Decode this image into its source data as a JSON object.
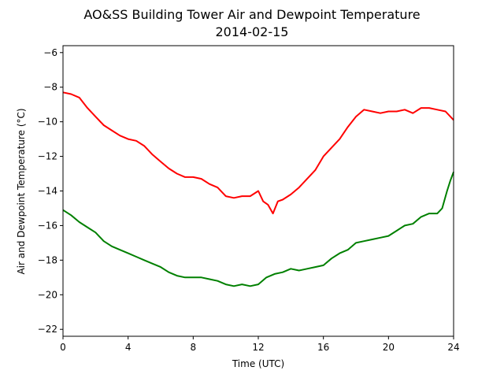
{
  "chart_data": {
    "type": "line",
    "title": "AO&SS Building Tower Air and Dewpoint Temperature",
    "subtitle": "2014-02-15",
    "xlabel": "Time (UTC)",
    "ylabel": "Air and Dewpoint Temperature (°C)",
    "xlim": [
      0,
      24
    ],
    "ylim": [
      -22.4,
      -5.6
    ],
    "xticks": [
      0,
      4,
      8,
      12,
      16,
      20,
      24
    ],
    "xtick_labels": [
      "0",
      "4",
      "8",
      "12",
      "16",
      "20",
      "24"
    ],
    "yticks": [
      -6,
      -8,
      -10,
      -12,
      -14,
      -16,
      -18,
      -20,
      -22
    ],
    "ytick_labels": [
      "−6",
      "−8",
      "−10",
      "−12",
      "−14",
      "−16",
      "−18",
      "−20",
      "−22"
    ],
    "grid": false,
    "legend": "none",
    "series": [
      {
        "color": "#ff0000",
        "x": [
          0,
          0.5,
          1,
          1.5,
          2,
          2.5,
          3,
          3.5,
          4,
          4.5,
          5,
          5.5,
          6,
          6.5,
          7,
          7.5,
          8,
          8.5,
          9,
          9.5,
          10,
          10.5,
          11,
          11.5,
          12,
          12.3,
          12.6,
          12.9,
          13.2,
          13.5,
          14,
          14.5,
          15,
          15.5,
          16,
          16.5,
          17,
          17.5,
          18,
          18.5,
          19,
          19.5,
          20,
          20.5,
          21,
          21.5,
          22,
          22.5,
          23,
          23.5,
          24
        ],
        "y": [
          -8.3,
          -8.4,
          -8.6,
          -9.2,
          -9.7,
          -10.2,
          -10.5,
          -10.8,
          -11.0,
          -11.1,
          -11.4,
          -11.9,
          -12.3,
          -12.7,
          -13.0,
          -13.2,
          -13.2,
          -13.3,
          -13.6,
          -13.8,
          -14.3,
          -14.4,
          -14.3,
          -14.3,
          -14.0,
          -14.6,
          -14.8,
          -15.3,
          -14.6,
          -14.5,
          -14.2,
          -13.8,
          -13.3,
          -12.8,
          -12.0,
          -11.5,
          -11.0,
          -10.3,
          -9.7,
          -9.3,
          -9.4,
          -9.5,
          -9.4,
          -9.4,
          -9.3,
          -9.5,
          -9.2,
          -9.2,
          -9.3,
          -9.4,
          -9.9
        ]
      },
      {
        "color": "#008000",
        "x": [
          0,
          0.5,
          1,
          1.5,
          2,
          2.5,
          3,
          3.5,
          4,
          4.5,
          5,
          5.5,
          6,
          6.5,
          7,
          7.5,
          8,
          8.5,
          9,
          9.5,
          10,
          10.5,
          11,
          11.5,
          12,
          12.5,
          13,
          13.5,
          14,
          14.5,
          15,
          15.5,
          16,
          16.5,
          17,
          17.5,
          18,
          18.5,
          19,
          19.5,
          20,
          20.5,
          21,
          21.5,
          22,
          22.5,
          23,
          23.3,
          23.6,
          23.8,
          24
        ],
        "y": [
          -15.1,
          -15.4,
          -15.8,
          -16.1,
          -16.4,
          -16.9,
          -17.2,
          -17.4,
          -17.6,
          -17.8,
          -18.0,
          -18.2,
          -18.4,
          -18.7,
          -18.9,
          -19.0,
          -19.0,
          -19.0,
          -19.1,
          -19.2,
          -19.4,
          -19.5,
          -19.4,
          -19.5,
          -19.4,
          -19.0,
          -18.8,
          -18.7,
          -18.5,
          -18.6,
          -18.5,
          -18.4,
          -18.3,
          -17.9,
          -17.6,
          -17.4,
          -17.0,
          -16.9,
          -16.8,
          -16.7,
          -16.6,
          -16.3,
          -16.0,
          -15.9,
          -15.5,
          -15.3,
          -15.3,
          -15.0,
          -14.0,
          -13.4,
          -12.9
        ]
      }
    ]
  }
}
